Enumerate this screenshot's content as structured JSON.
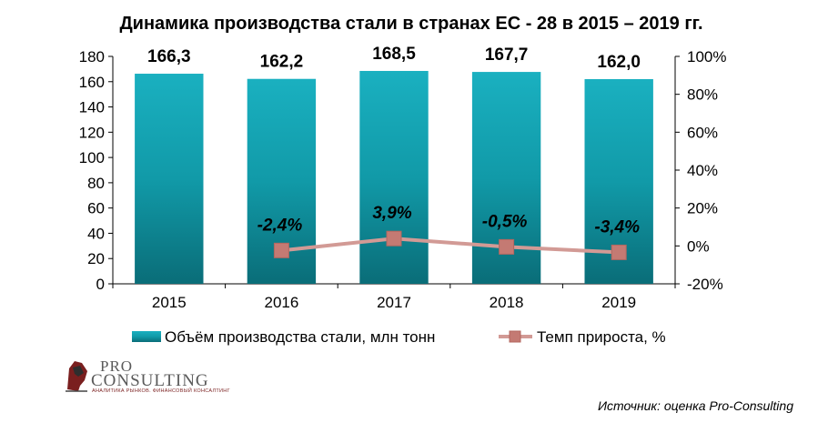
{
  "chart_data": {
    "type": "bar+line",
    "title": "Динамика  производства  стали  в  странах  ЕС - 28 в 2015 – 2019 гг.",
    "categories": [
      "2015",
      "2016",
      "2017",
      "2018",
      "2019"
    ],
    "series": [
      {
        "name": "Объём производства стали,  млн тонн",
        "type": "bar",
        "axis": "left",
        "values": [
          166.3,
          162.2,
          168.5,
          167.7,
          162.0
        ],
        "labels": [
          "166,3",
          "162,2",
          "168,5",
          "167,7",
          "162,0"
        ]
      },
      {
        "name": "Темп прироста, %",
        "type": "line",
        "axis": "right",
        "x": [
          "2016",
          "2017",
          "2018",
          "2019"
        ],
        "values": [
          -2.4,
          3.9,
          -0.5,
          -3.4
        ],
        "labels": [
          "-2,4%",
          "3,9%",
          "-0,5%",
          "-3,4%"
        ]
      }
    ],
    "y_left": {
      "ylim": [
        0,
        180
      ],
      "ticks": [
        "0",
        "20",
        "40",
        "60",
        "80",
        "100",
        "120",
        "140",
        "160",
        "180"
      ]
    },
    "y_right": {
      "ylim": [
        -20,
        100
      ],
      "ticks": [
        "-20%",
        "0%",
        "20%",
        "40%",
        "60%",
        "80%",
        "100%"
      ]
    },
    "grid": false,
    "legend": "bottom",
    "colors": {
      "bar": "#1aa5b5",
      "bar_dark": "#0c6f79",
      "line": "#d29a95",
      "marker": "#c47a73"
    }
  },
  "logo": {
    "line1": "PRO",
    "line2": "CONSULTING",
    "tagline": "АНАЛИТИКА РЫНКОВ. ФИНАНСОВЫЙ КОНСАЛТИНГ"
  },
  "source": "Источник: оценка Pro-Consulting"
}
